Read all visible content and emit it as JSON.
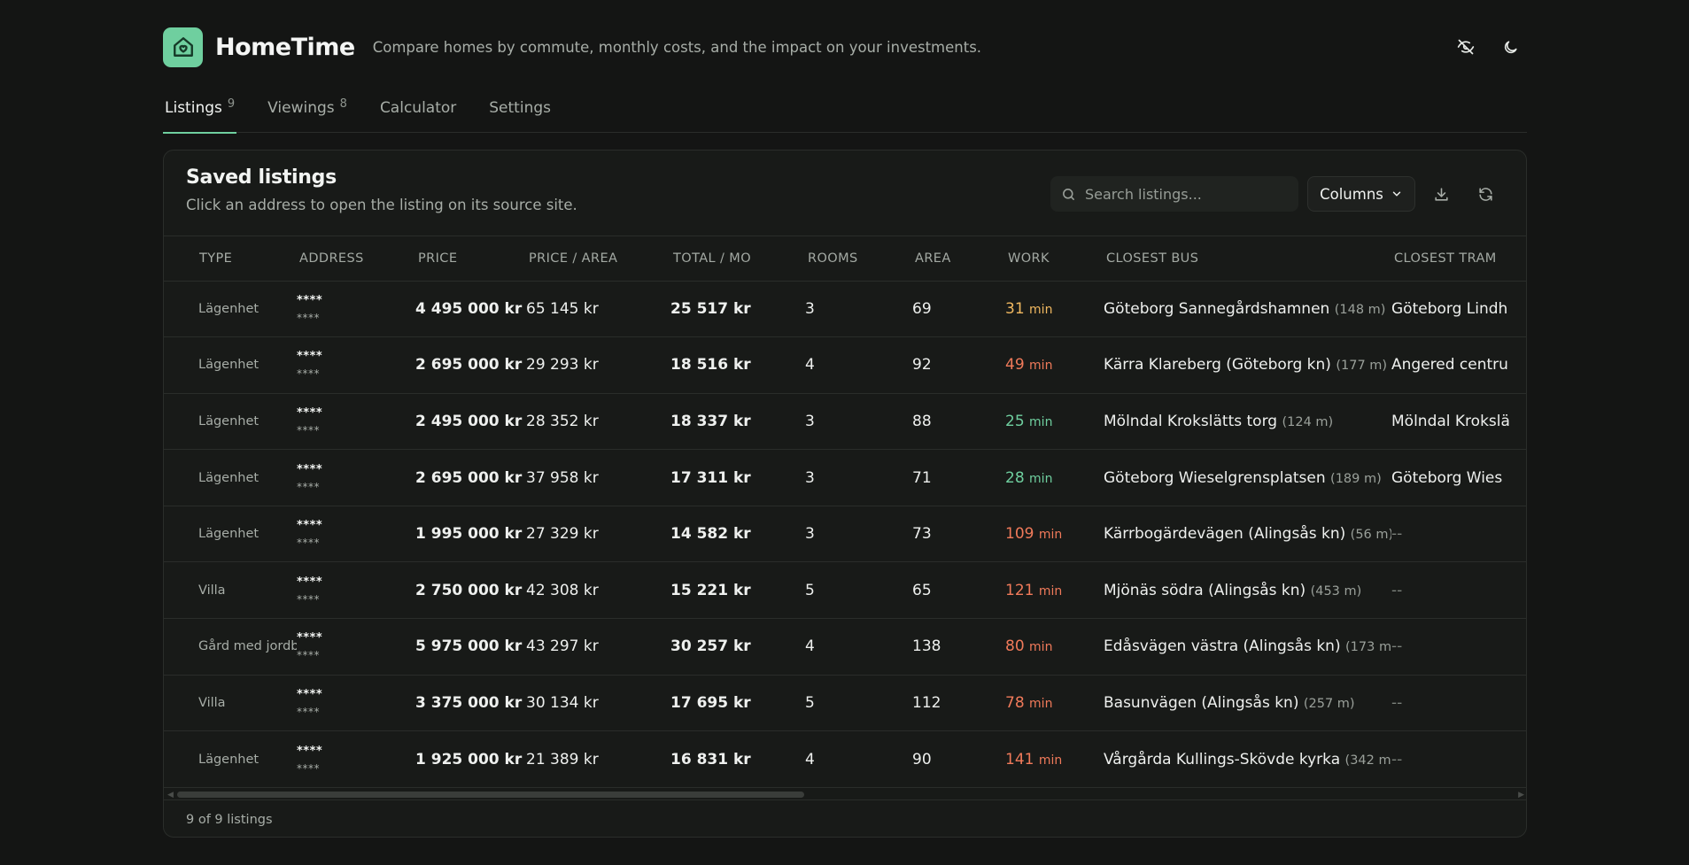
{
  "app": {
    "name": "HomeTime",
    "tagline": "Compare homes by commute, monthly costs, and the impact on your investments.",
    "accent": "#6fcf9f"
  },
  "header_actions": [
    {
      "icon": "eye-off-icon",
      "label": "Hide values"
    },
    {
      "icon": "moon-icon",
      "label": "Toggle theme"
    }
  ],
  "tabs": [
    {
      "label": "Listings",
      "count": "9",
      "active": true
    },
    {
      "label": "Viewings",
      "count": "8",
      "active": false
    },
    {
      "label": "Calculator",
      "count": "",
      "active": false
    },
    {
      "label": "Settings",
      "count": "",
      "active": false
    }
  ],
  "card": {
    "title": "Saved listings",
    "subtitle": "Click an address to open the listing on its source site.",
    "search_placeholder": "Search listings...",
    "columns_label": "Columns",
    "footer": "9 of 9 listings"
  },
  "table": {
    "columns": [
      "TYPE",
      "ADDRESS",
      "PRICE",
      "PRICE / AREA",
      "TOTAL / MO",
      "ROOMS",
      "AREA",
      "WORK",
      "CLOSEST BUS",
      "CLOSEST TRAM"
    ],
    "rows": [
      {
        "type": "Lägenhet",
        "addr": "****",
        "addr_sub": "****",
        "price": "4 495 000 kr",
        "ppa": "65 145 kr",
        "total": "25 517 kr",
        "rooms": "3",
        "area": "69",
        "work": "31",
        "work_unit": "min",
        "work_color": "orange",
        "bus": "Göteborg Sannegårdshamnen",
        "bus_dist": "(148 m)",
        "tram": "Göteborg Lindh"
      },
      {
        "type": "Lägenhet",
        "addr": "****",
        "addr_sub": "****",
        "price": "2 695 000 kr",
        "ppa": "29 293 kr",
        "total": "18 516 kr",
        "rooms": "4",
        "area": "92",
        "work": "49",
        "work_unit": "min",
        "work_color": "red",
        "bus": "Kärra Klareberg (Göteborg kn)",
        "bus_dist": "(177 m)",
        "tram": "Angered centru"
      },
      {
        "type": "Lägenhet",
        "addr": "****",
        "addr_sub": "****",
        "price": "2 495 000 kr",
        "ppa": "28 352 kr",
        "total": "18 337 kr",
        "rooms": "3",
        "area": "88",
        "work": "25",
        "work_unit": "min",
        "work_color": "green",
        "bus": "Mölndal Krokslätts torg",
        "bus_dist": "(124 m)",
        "tram": "Mölndal Krokslä"
      },
      {
        "type": "Lägenhet",
        "addr": "****",
        "addr_sub": "****",
        "price": "2 695 000 kr",
        "ppa": "37 958 kr",
        "total": "17 311 kr",
        "rooms": "3",
        "area": "71",
        "work": "28",
        "work_unit": "min",
        "work_color": "green",
        "bus": "Göteborg Wieselgrensplatsen",
        "bus_dist": "(189 m)",
        "tram": "Göteborg Wies"
      },
      {
        "type": "Lägenhet",
        "addr": "****",
        "addr_sub": "****",
        "price": "1 995 000 kr",
        "ppa": "27 329 kr",
        "total": "14 582 kr",
        "rooms": "3",
        "area": "73",
        "work": "109",
        "work_unit": "min",
        "work_color": "red",
        "bus": "Kärrbogärdevägen (Alingsås kn)",
        "bus_dist": "(56 m)",
        "tram": "--"
      },
      {
        "type": "Villa",
        "addr": "****",
        "addr_sub": "****",
        "price": "2 750 000 kr",
        "ppa": "42 308 kr",
        "total": "15 221 kr",
        "rooms": "5",
        "area": "65",
        "work": "121",
        "work_unit": "min",
        "work_color": "red",
        "bus": "Mjönäs södra (Alingsås kn)",
        "bus_dist": "(453 m)",
        "tram": "--"
      },
      {
        "type": "Gård med jordbruk",
        "addr": "****",
        "addr_sub": "****",
        "price": "5 975 000 kr",
        "ppa": "43 297 kr",
        "total": "30 257 kr",
        "rooms": "4",
        "area": "138",
        "work": "80",
        "work_unit": "min",
        "work_color": "red",
        "bus": "Edåsvägen västra (Alingsås kn)",
        "bus_dist": "(173 m)",
        "tram": "--"
      },
      {
        "type": "Villa",
        "addr": "****",
        "addr_sub": "****",
        "price": "3 375 000 kr",
        "ppa": "30 134 kr",
        "total": "17 695 kr",
        "rooms": "5",
        "area": "112",
        "work": "78",
        "work_unit": "min",
        "work_color": "red",
        "bus": "Basunvägen (Alingsås kn)",
        "bus_dist": "(257 m)",
        "tram": "--"
      },
      {
        "type": "Lägenhet",
        "addr": "****",
        "addr_sub": "****",
        "price": "1 925 000 kr",
        "ppa": "21 389 kr",
        "total": "16 831 kr",
        "rooms": "4",
        "area": "90",
        "work": "141",
        "work_unit": "min",
        "work_color": "red",
        "bus": "Vårgårda Kullings-Skövde kyrka",
        "bus_dist": "(342 m)",
        "tram": "--"
      }
    ]
  },
  "colors": {
    "background": "#141514",
    "card": "#181a18",
    "work_orange": "#f0b860",
    "work_red": "#f07a5a",
    "work_green": "#6fcf9f"
  }
}
